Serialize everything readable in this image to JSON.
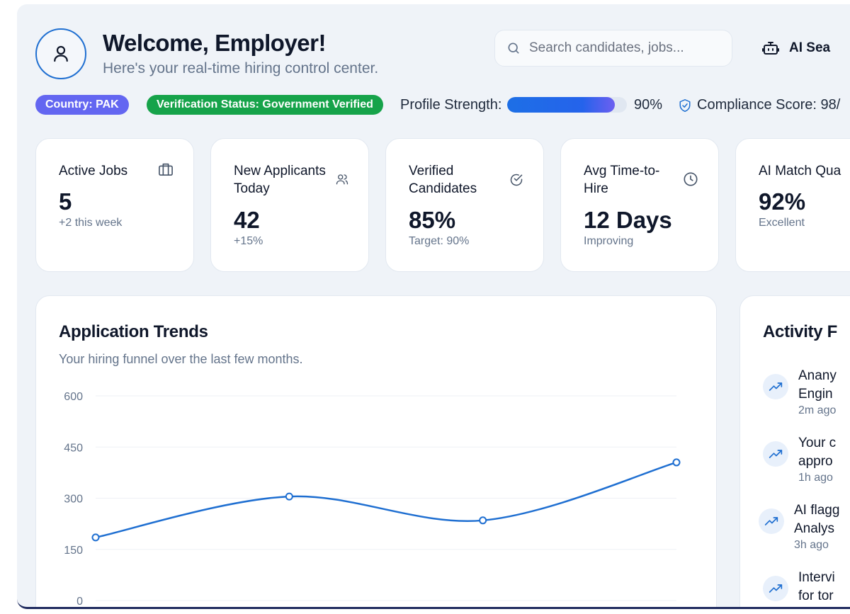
{
  "header": {
    "title": "Welcome, Employer!",
    "subtitle": "Here's your real-time hiring control center.",
    "search_placeholder": "Search candidates, jobs...",
    "ai_search_label": "AI Sea"
  },
  "status": {
    "country": "Country: PAK",
    "verification": "Verification Status: Government Verified",
    "profile_strength_label": "Profile Strength:",
    "profile_strength_value": "90%",
    "profile_strength_fraction": 0.9,
    "compliance_label": "Compliance Score: 98/"
  },
  "stats": [
    {
      "label": "Active Jobs",
      "value": "5",
      "note": "+2 this week",
      "icon": "briefcase-icon"
    },
    {
      "label": "New Applicants Today",
      "value": "42",
      "note": "+15%",
      "icon": "users-icon"
    },
    {
      "label": "Verified Candidates",
      "value": "85%",
      "note": "Target: 90%",
      "icon": "check-circle-icon"
    },
    {
      "label": "Avg Time-to-Hire",
      "value": "12 Days",
      "note": "Improving",
      "icon": "clock-icon"
    },
    {
      "label": "AI Match Qua",
      "value": "92%",
      "note": "Excellent",
      "icon": "sparkle-icon"
    }
  ],
  "trends": {
    "title": "Application Trends",
    "subtitle": "Your hiring funnel over the last few months."
  },
  "chart_data": {
    "type": "line",
    "title": "Application Trends",
    "subtitle": "Your hiring funnel over the last few months.",
    "y_ticks": [
      "600",
      "450",
      "300",
      "150",
      "0"
    ],
    "ylim": [
      0,
      600
    ],
    "grid": true,
    "series": [
      {
        "values": [
          185,
          305,
          235,
          405
        ]
      }
    ],
    "colors": {
      "line": "#1f6fd1",
      "grid": "#eef1f5"
    }
  },
  "activity": {
    "title": "Activity F",
    "items": [
      {
        "line1": "Anany",
        "line2": "Engin",
        "time": "2m ago"
      },
      {
        "line1": "Your c",
        "line2": "appro",
        "time": "1h ago"
      },
      {
        "line1": "AI flagg",
        "line2": "Analys",
        "time": "3h ago"
      },
      {
        "line1": "Intervi",
        "line2": "for tor",
        "time": ""
      }
    ]
  }
}
